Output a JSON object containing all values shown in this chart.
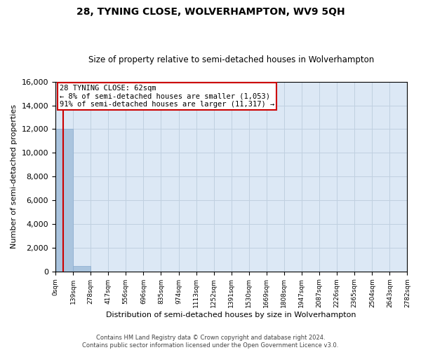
{
  "title": "28, TYNING CLOSE, WOLVERHAMPTON, WV9 5QH",
  "subtitle": "Size of property relative to semi-detached houses in Wolverhampton",
  "xlabel": "Distribution of semi-detached houses by size in Wolverhampton",
  "ylabel": "Number of semi-detached properties",
  "footer_line1": "Contains HM Land Registry data © Crown copyright and database right 2024.",
  "footer_line2": "Contains public sector information licensed under the Open Government Licence v3.0.",
  "property_size": 62,
  "property_label": "28 TYNING CLOSE: 62sqm",
  "pct_smaller": 8,
  "count_smaller": 1053,
  "pct_larger": 91,
  "count_larger": 11317,
  "annotation_line1": "28 TYNING CLOSE: 62sqm",
  "annotation_line2": "← 8% of semi-detached houses are smaller (1,053)",
  "annotation_line3": "91% of semi-detached houses are larger (11,317) →",
  "bin_edges": [
    0,
    139,
    278,
    417,
    556,
    696,
    835,
    974,
    1113,
    1252,
    1391,
    1530,
    1669,
    1808,
    1947,
    2087,
    2226,
    2365,
    2504,
    2643,
    2782
  ],
  "bin_labels": [
    "0sqm",
    "139sqm",
    "278sqm",
    "417sqm",
    "556sqm",
    "696sqm",
    "835sqm",
    "974sqm",
    "1113sqm",
    "1252sqm",
    "1391sqm",
    "1530sqm",
    "1669sqm",
    "1808sqm",
    "1947sqm",
    "2087sqm",
    "2226sqm",
    "2365sqm",
    "2504sqm",
    "2643sqm",
    "2782sqm"
  ],
  "bar_values": [
    12000,
    420,
    0,
    0,
    0,
    0,
    0,
    0,
    0,
    0,
    0,
    0,
    0,
    0,
    0,
    0,
    0,
    0,
    0,
    0
  ],
  "bar_color": "#aac4de",
  "bar_edge_color": "#88aace",
  "highlight_color": "#cc0000",
  "box_color": "#cc0000",
  "ylim": [
    0,
    16000
  ],
  "yticks": [
    0,
    2000,
    4000,
    6000,
    8000,
    10000,
    12000,
    14000,
    16000
  ],
  "grid_color": "#c0d0e0",
  "bg_color": "#dce8f5",
  "title_fontsize": 10,
  "subtitle_fontsize": 8.5,
  "ylabel_fontsize": 8,
  "xlabel_fontsize": 8,
  "footer_fontsize": 6,
  "annot_fontsize": 7.5
}
